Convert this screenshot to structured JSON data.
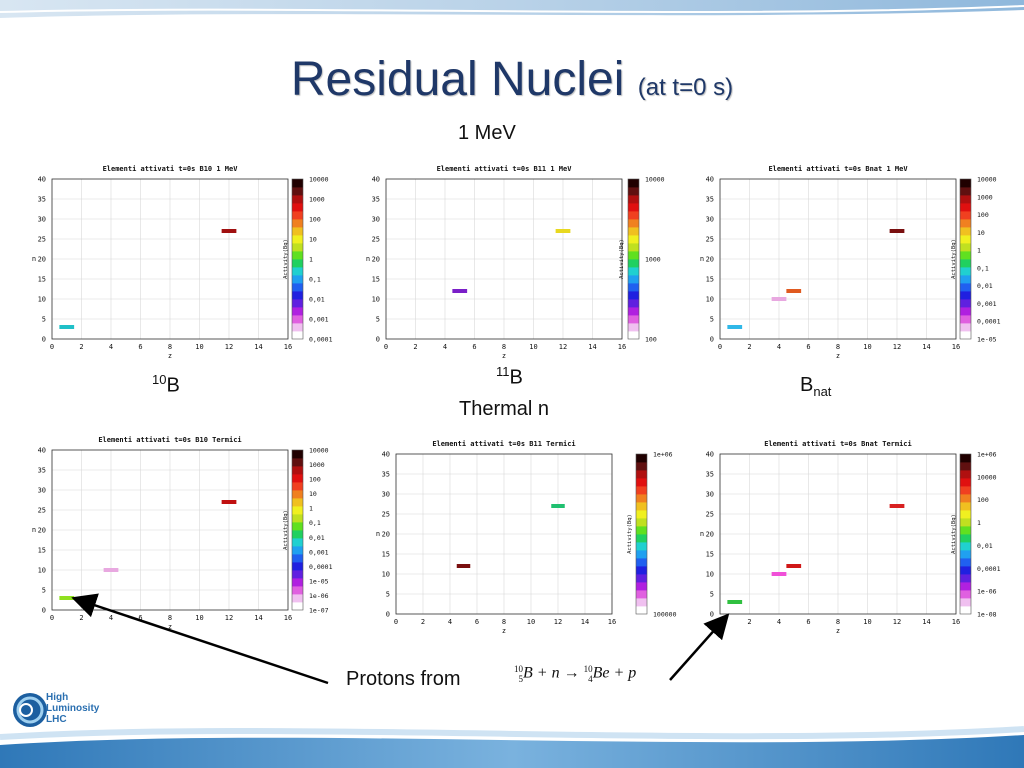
{
  "slide": {
    "title": "Residual Nuclei",
    "subtitle": "(at t=0 s)",
    "section_1": "1 MeV",
    "section_2": "Thermal n",
    "protons_text": "Protons from",
    "equation": {
      "a1": "10",
      "z1": "5",
      "el1": "B",
      "plus1": "+",
      "n": "n",
      "arrow": "→",
      "a2": "10",
      "z2": "4",
      "el2": "Be",
      "plus2": "+",
      "p": "p"
    },
    "logo": {
      "line1": "High",
      "line2": "Luminosity",
      "line3": "LHC"
    },
    "target_labels": [
      {
        "mass": "10",
        "el": "B",
        "sub": ""
      },
      {
        "mass": "11",
        "el": "B",
        "sub": ""
      },
      {
        "mass": "",
        "el": "B",
        "sub": "nat"
      }
    ],
    "colors": {
      "title": "#1f3868",
      "band": "#5b9bd5"
    }
  },
  "chart_data": [
    {
      "type": "heatmap",
      "title": "Elementi attivati t=0s B10 1 MeV",
      "xlabel": "z",
      "ylabel": "n",
      "colorbar_label": "Activity(Bq)",
      "xlim": [
        0,
        16
      ],
      "ylim": [
        0,
        40
      ],
      "xticks": [
        "0",
        "2",
        "4",
        "6",
        "8",
        "10",
        "12",
        "14",
        "16"
      ],
      "yticks": [
        "0",
        "5",
        "10",
        "15",
        "20",
        "25",
        "30",
        "35",
        "40"
      ],
      "colorbar_ticks": [
        "0,0001",
        "0,001",
        "0,01",
        "0,1",
        "1",
        "10",
        "100",
        "1000",
        "10000"
      ],
      "points": [
        {
          "z": 1,
          "n": 3,
          "color": "#20c0c8"
        },
        {
          "z": 12,
          "n": 27,
          "color": "#a01010"
        }
      ]
    },
    {
      "type": "heatmap",
      "title": "Elementi attivati t=0s B11 1 MeV",
      "xlabel": "z",
      "ylabel": "n",
      "colorbar_label": "Activity(Bq)",
      "xlim": [
        0,
        16
      ],
      "ylim": [
        0,
        40
      ],
      "xticks": [
        "0",
        "2",
        "4",
        "6",
        "8",
        "10",
        "12",
        "14",
        "16"
      ],
      "yticks": [
        "0",
        "5",
        "10",
        "15",
        "20",
        "25",
        "30",
        "35",
        "40"
      ],
      "colorbar_ticks": [
        "100",
        "1000",
        "10000"
      ],
      "points": [
        {
          "z": 5,
          "n": 12,
          "color": "#7a1fc8"
        },
        {
          "z": 12,
          "n": 27,
          "color": "#e8d820"
        }
      ]
    },
    {
      "type": "heatmap",
      "title": "Elementi attivati t=0s Bnat 1 MeV",
      "xlabel": "z",
      "ylabel": "n",
      "colorbar_label": "Activity(Bq)",
      "xlim": [
        0,
        16
      ],
      "ylim": [
        0,
        40
      ],
      "xticks": [
        "0",
        "2",
        "4",
        "6",
        "8",
        "10",
        "12",
        "14",
        "16"
      ],
      "yticks": [
        "0",
        "5",
        "10",
        "15",
        "20",
        "25",
        "30",
        "35",
        "40"
      ],
      "colorbar_ticks": [
        "1e-05",
        "0,0001",
        "0,001",
        "0,01",
        "0,1",
        "1",
        "10",
        "100",
        "1000",
        "10000"
      ],
      "points": [
        {
          "z": 1,
          "n": 3,
          "color": "#30b8e8"
        },
        {
          "z": 4,
          "n": 10,
          "color": "#e8a8e0"
        },
        {
          "z": 5,
          "n": 12,
          "color": "#e05a20"
        },
        {
          "z": 12,
          "n": 27,
          "color": "#7a1010"
        }
      ]
    },
    {
      "type": "heatmap",
      "title": "Elementi attivati t=0s B10 Termici",
      "xlabel": "z",
      "ylabel": "n",
      "colorbar_label": "Activity(Bq)",
      "xlim": [
        0,
        16
      ],
      "ylim": [
        0,
        40
      ],
      "xticks": [
        "0",
        "2",
        "4",
        "6",
        "8",
        "10",
        "12",
        "14",
        "16"
      ],
      "yticks": [
        "0",
        "5",
        "10",
        "15",
        "20",
        "25",
        "30",
        "35",
        "40"
      ],
      "colorbar_ticks": [
        "1e-07",
        "1e-06",
        "1e-05",
        "0,0001",
        "0,001",
        "0,01",
        "0,1",
        "1",
        "10",
        "100",
        "1000",
        "10000"
      ],
      "points": [
        {
          "z": 1,
          "n": 3,
          "color": "#90e020"
        },
        {
          "z": 4,
          "n": 10,
          "color": "#e8a8e0"
        },
        {
          "z": 12,
          "n": 27,
          "color": "#c01010"
        }
      ]
    },
    {
      "type": "heatmap",
      "title": "Elementi attivati t=0s B11 Termici",
      "xlabel": "z",
      "ylabel": "n",
      "colorbar_label": "Activity(Bq)",
      "xlim": [
        0,
        16
      ],
      "ylim": [
        0,
        40
      ],
      "xticks": [
        "0",
        "2",
        "4",
        "6",
        "8",
        "10",
        "12",
        "14",
        "16"
      ],
      "yticks": [
        "0",
        "5",
        "10",
        "15",
        "20",
        "25",
        "30",
        "35",
        "40"
      ],
      "colorbar_ticks": [
        "100000",
        "1e+06"
      ],
      "points": [
        {
          "z": 5,
          "n": 12,
          "color": "#7a1010"
        },
        {
          "z": 12,
          "n": 27,
          "color": "#20c070"
        }
      ]
    },
    {
      "type": "heatmap",
      "title": "Elementi attivati t=0s Bnat Termici",
      "xlabel": "z",
      "ylabel": "n",
      "colorbar_label": "Activity(Bq)",
      "xlim": [
        0,
        16
      ],
      "ylim": [
        0,
        40
      ],
      "xticks": [
        "0",
        "2",
        "4",
        "6",
        "8",
        "10",
        "12",
        "14",
        "16"
      ],
      "yticks": [
        "0",
        "5",
        "10",
        "15",
        "20",
        "25",
        "30",
        "35",
        "40"
      ],
      "colorbar_ticks": [
        "1e-08",
        "1e-06",
        "0,0001",
        "0,01",
        "1",
        "100",
        "10000",
        "1e+06"
      ],
      "points": [
        {
          "z": 1,
          "n": 3,
          "color": "#30c040"
        },
        {
          "z": 4,
          "n": 10,
          "color": "#f050d8"
        },
        {
          "z": 5,
          "n": 12,
          "color": "#d01818"
        },
        {
          "z": 12,
          "n": 27,
          "color": "#d82020"
        }
      ]
    }
  ]
}
